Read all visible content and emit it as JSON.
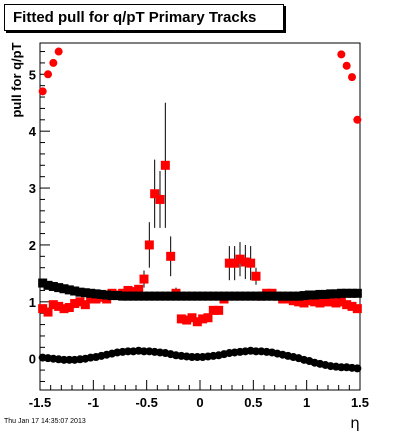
{
  "chart_data": {
    "type": "scatter",
    "title": "Fitted pull for q/pT  Primary Tracks",
    "xlabel": "η",
    "ylabel": "pull for q/pT",
    "xlim": [
      -1.5,
      1.5
    ],
    "ylim": [
      -0.55,
      5.55
    ],
    "x_ticks": [
      -1.5,
      -1,
      -0.5,
      0,
      0.5,
      1,
      1.5
    ],
    "x_tick_labels": [
      "-1.5",
      "-1",
      "-0.5",
      "0",
      "0.5",
      "1",
      "1.5"
    ],
    "y_ticks": [
      0,
      1,
      2,
      3,
      4,
      5
    ],
    "y_tick_labels": [
      "0",
      "1",
      "2",
      "3",
      "4",
      "5"
    ],
    "grid": false,
    "legend": false,
    "series": [
      {
        "marker": "circle",
        "color": "#ff0000",
        "x": [
          -1.475,
          -1.425,
          -1.375,
          -1.325,
          1.325,
          1.375,
          1.425,
          1.475
        ],
        "y": [
          4.7,
          5.0,
          5.2,
          5.4,
          5.35,
          5.15,
          4.95,
          4.2
        ]
      },
      {
        "marker": "square",
        "color": "#ff0000",
        "points": [
          {
            "x": -1.475,
            "y": 0.88,
            "err": 0.05
          },
          {
            "x": -1.425,
            "y": 0.82,
            "err": 0.05
          },
          {
            "x": -1.375,
            "y": 0.95,
            "err": 0.05
          },
          {
            "x": -1.325,
            "y": 0.92,
            "err": 0.05
          },
          {
            "x": -1.275,
            "y": 0.88,
            "err": 0.05
          },
          {
            "x": -1.225,
            "y": 0.9,
            "err": 0.05
          },
          {
            "x": -1.175,
            "y": 0.97,
            "err": 0.05
          },
          {
            "x": -1.125,
            "y": 1.0,
            "err": 0.05
          },
          {
            "x": -1.075,
            "y": 0.95,
            "err": 0.05
          },
          {
            "x": -1.025,
            "y": 1.05,
            "err": 0.05
          },
          {
            "x": -0.975,
            "y": 1.05,
            "err": 0.05
          },
          {
            "x": -0.925,
            "y": 1.08,
            "err": 0.05
          },
          {
            "x": -0.875,
            "y": 1.05,
            "err": 0.05
          },
          {
            "x": -0.825,
            "y": 1.15,
            "err": 0.06
          },
          {
            "x": -0.775,
            "y": 1.12,
            "err": 0.06
          },
          {
            "x": -0.725,
            "y": 1.15,
            "err": 0.06
          },
          {
            "x": -0.675,
            "y": 1.2,
            "err": 0.06
          },
          {
            "x": -0.625,
            "y": 1.18,
            "err": 0.06
          },
          {
            "x": -0.575,
            "y": 1.22,
            "err": 0.07
          },
          {
            "x": -0.525,
            "y": 1.4,
            "err": 0.15
          },
          {
            "x": -0.475,
            "y": 2.0,
            "err": 0.4
          },
          {
            "x": -0.425,
            "y": 2.9,
            "err": 0.6
          },
          {
            "x": -0.375,
            "y": 2.8,
            "err": 0.5
          },
          {
            "x": -0.325,
            "y": 3.4,
            "err": 1.1
          },
          {
            "x": -0.275,
            "y": 1.8,
            "err": 0.35
          },
          {
            "x": -0.225,
            "y": 1.15,
            "err": 0.1
          },
          {
            "x": -0.175,
            "y": 0.7,
            "err": 0.06
          },
          {
            "x": -0.125,
            "y": 0.68,
            "err": 0.06
          },
          {
            "x": -0.075,
            "y": 0.72,
            "err": 0.06
          },
          {
            "x": -0.025,
            "y": 0.65,
            "err": 0.06
          },
          {
            "x": 0.025,
            "y": 0.7,
            "err": 0.06
          },
          {
            "x": 0.075,
            "y": 0.72,
            "err": 0.06
          },
          {
            "x": 0.125,
            "y": 0.85,
            "err": 0.06
          },
          {
            "x": 0.175,
            "y": 0.85,
            "err": 0.06
          },
          {
            "x": 0.225,
            "y": 1.05,
            "err": 0.08
          },
          {
            "x": 0.275,
            "y": 1.68,
            "err": 0.3
          },
          {
            "x": 0.325,
            "y": 1.68,
            "err": 0.3
          },
          {
            "x": 0.375,
            "y": 1.75,
            "err": 0.3
          },
          {
            "x": 0.425,
            "y": 1.7,
            "err": 0.3
          },
          {
            "x": 0.475,
            "y": 1.68,
            "err": 0.3
          },
          {
            "x": 0.525,
            "y": 1.45,
            "err": 0.15
          },
          {
            "x": 0.575,
            "y": 1.1,
            "err": 0.08
          },
          {
            "x": 0.625,
            "y": 1.15,
            "err": 0.06
          },
          {
            "x": 0.675,
            "y": 1.15,
            "err": 0.06
          },
          {
            "x": 0.725,
            "y": 1.1,
            "err": 0.06
          },
          {
            "x": 0.775,
            "y": 1.05,
            "err": 0.05
          },
          {
            "x": 0.825,
            "y": 1.05,
            "err": 0.05
          },
          {
            "x": 0.875,
            "y": 1.02,
            "err": 0.05
          },
          {
            "x": 0.925,
            "y": 1.0,
            "err": 0.05
          },
          {
            "x": 0.975,
            "y": 0.98,
            "err": 0.05
          },
          {
            "x": 1.025,
            "y": 1.02,
            "err": 0.05
          },
          {
            "x": 1.075,
            "y": 1.0,
            "err": 0.05
          },
          {
            "x": 1.125,
            "y": 0.98,
            "err": 0.05
          },
          {
            "x": 1.175,
            "y": 1.0,
            "err": 0.05
          },
          {
            "x": 1.225,
            "y": 1.0,
            "err": 0.05
          },
          {
            "x": 1.275,
            "y": 0.98,
            "err": 0.05
          },
          {
            "x": 1.325,
            "y": 1.0,
            "err": 0.05
          },
          {
            "x": 1.375,
            "y": 0.95,
            "err": 0.05
          },
          {
            "x": 1.425,
            "y": 0.92,
            "err": 0.05
          },
          {
            "x": 1.475,
            "y": 0.88,
            "err": 0.05
          }
        ]
      },
      {
        "marker": "square",
        "color": "#000000",
        "x": [
          -1.475,
          -1.425,
          -1.375,
          -1.325,
          -1.275,
          -1.225,
          -1.175,
          -1.125,
          -1.075,
          -1.025,
          -0.975,
          -0.925,
          -0.875,
          -0.825,
          -0.775,
          -0.725,
          -0.675,
          -0.625,
          -0.575,
          -0.525,
          -0.475,
          -0.425,
          -0.375,
          -0.325,
          -0.275,
          -0.225,
          -0.175,
          -0.125,
          -0.075,
          -0.025,
          0.025,
          0.075,
          0.125,
          0.175,
          0.225,
          0.275,
          0.325,
          0.375,
          0.425,
          0.475,
          0.525,
          0.575,
          0.625,
          0.675,
          0.725,
          0.775,
          0.825,
          0.875,
          0.925,
          0.975,
          1.025,
          1.075,
          1.125,
          1.175,
          1.225,
          1.275,
          1.325,
          1.375,
          1.425,
          1.475
        ],
        "y": [
          1.33,
          1.29,
          1.27,
          1.25,
          1.23,
          1.21,
          1.19,
          1.17,
          1.16,
          1.15,
          1.14,
          1.13,
          1.12,
          1.11,
          1.11,
          1.1,
          1.1,
          1.1,
          1.1,
          1.1,
          1.1,
          1.1,
          1.1,
          1.1,
          1.1,
          1.1,
          1.1,
          1.1,
          1.1,
          1.1,
          1.1,
          1.1,
          1.1,
          1.1,
          1.1,
          1.1,
          1.1,
          1.1,
          1.1,
          1.1,
          1.1,
          1.1,
          1.1,
          1.1,
          1.1,
          1.1,
          1.1,
          1.1,
          1.1,
          1.11,
          1.12,
          1.12,
          1.13,
          1.13,
          1.14,
          1.14,
          1.15,
          1.15,
          1.15,
          1.15
        ]
      },
      {
        "marker": "circle",
        "color": "#000000",
        "x": [
          -1.475,
          -1.425,
          -1.375,
          -1.325,
          -1.275,
          -1.225,
          -1.175,
          -1.125,
          -1.075,
          -1.025,
          -0.975,
          -0.925,
          -0.875,
          -0.825,
          -0.775,
          -0.725,
          -0.675,
          -0.625,
          -0.575,
          -0.525,
          -0.475,
          -0.425,
          -0.375,
          -0.325,
          -0.275,
          -0.225,
          -0.175,
          -0.125,
          -0.075,
          -0.025,
          0.025,
          0.075,
          0.125,
          0.175,
          0.225,
          0.275,
          0.325,
          0.375,
          0.425,
          0.475,
          0.525,
          0.575,
          0.625,
          0.675,
          0.725,
          0.775,
          0.825,
          0.875,
          0.925,
          0.975,
          1.025,
          1.075,
          1.125,
          1.175,
          1.225,
          1.275,
          1.325,
          1.375,
          1.425,
          1.475
        ],
        "y": [
          0.02,
          0.01,
          0.0,
          -0.01,
          -0.02,
          -0.02,
          -0.02,
          -0.01,
          0.0,
          0.02,
          0.03,
          0.05,
          0.07,
          0.09,
          0.11,
          0.12,
          0.13,
          0.13,
          0.14,
          0.13,
          0.13,
          0.12,
          0.11,
          0.1,
          0.08,
          0.06,
          0.05,
          0.04,
          0.03,
          0.03,
          0.03,
          0.04,
          0.05,
          0.06,
          0.08,
          0.1,
          0.11,
          0.12,
          0.13,
          0.14,
          0.13,
          0.13,
          0.12,
          0.11,
          0.09,
          0.07,
          0.05,
          0.03,
          0.01,
          -0.02,
          -0.04,
          -0.07,
          -0.09,
          -0.11,
          -0.13,
          -0.14,
          -0.15,
          -0.15,
          -0.16,
          -0.17
        ]
      }
    ]
  },
  "footer_text": "Thu Jan 17 14:35:07 2013"
}
